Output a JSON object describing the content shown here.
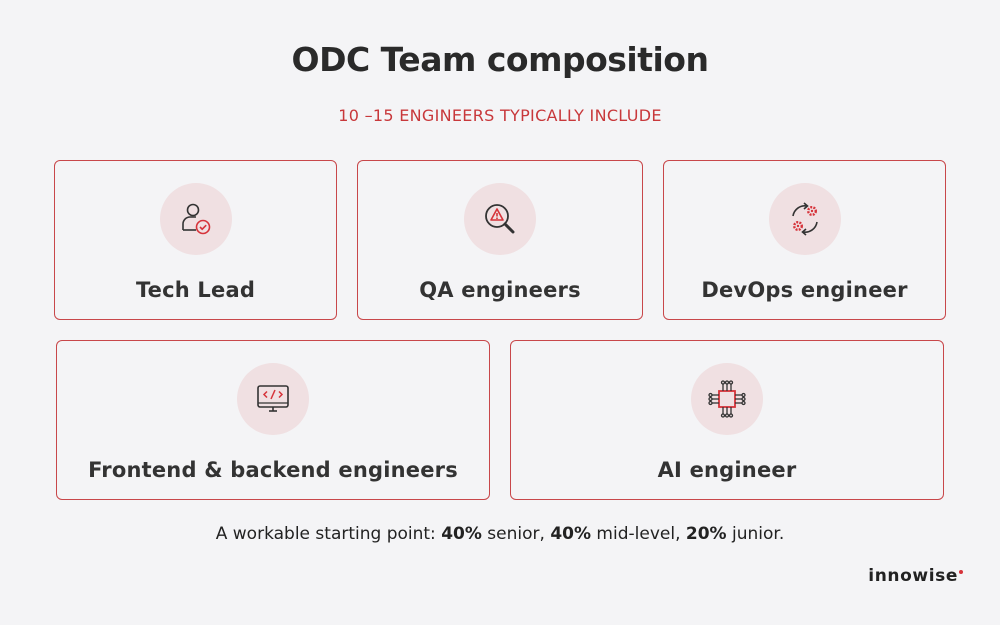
{
  "title": "ODC Team composition",
  "subtitle": "10 –15 ENGINEERS TYPICALLY INCLUDE",
  "cards": [
    {
      "label": "Tech Lead",
      "icon": "person-check-icon"
    },
    {
      "label": "QA engineers",
      "icon": "magnifier-warning-icon"
    },
    {
      "label": "DevOps engineer",
      "icon": "devops-cycle-icon"
    },
    {
      "label": "Frontend & backend engineers",
      "icon": "monitor-code-icon"
    },
    {
      "label": "AI engineer",
      "icon": "chip-icon"
    }
  ],
  "footer": {
    "prefix": "A workable starting point: ",
    "senior_pct": "40%",
    "senior_label": " senior, ",
    "mid_pct": "40%",
    "mid_label": " mid-level, ",
    "junior_pct": "20%",
    "junior_label": " junior."
  },
  "brand": "innowise",
  "colors": {
    "accent": "#c8383b",
    "border": "#c8474a",
    "icon_bg": "#f0e0e2",
    "background": "#f4f4f6"
  }
}
